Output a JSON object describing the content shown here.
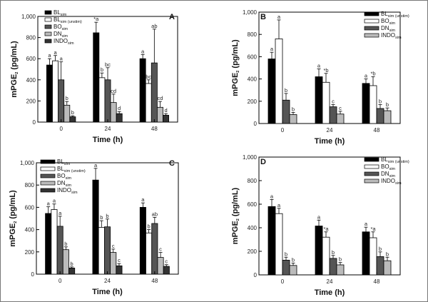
{
  "chart_data": [
    {
      "type": "bar",
      "panel": "A",
      "xlabel": "Time (h)",
      "ylabel": "mPGE",
      "ylabel_sub": "2",
      "ylabel_unit": " (pg/mL)",
      "ylim": [
        0,
        1000
      ],
      "yticks": [
        "0",
        "200",
        "400",
        "600",
        "800",
        "1,000"
      ],
      "categories": [
        "0",
        "24",
        "48"
      ],
      "series": [
        {
          "name": "BL",
          "sub": "sim",
          "color": "#000000",
          "values": [
            540,
            845,
            600
          ],
          "err": [
            60,
            100,
            40
          ],
          "labels": [
            "a",
            "*a",
            "a"
          ]
        },
        {
          "name": "BL",
          "sub": "sim (unstim)",
          "color": "#ffffff",
          "values": [
            580,
            420,
            365
          ],
          "err": [
            50,
            45,
            35
          ],
          "labels": [
            "a",
            "b",
            "bc"
          ]
        },
        {
          "name": "BO",
          "sub": "sim",
          "color": "#555555",
          "values": [
            400,
            400,
            560
          ],
          "err": [
            170,
            115,
            320
          ],
          "labels": [
            "a",
            "bc",
            "ab"
          ]
        },
        {
          "name": "DN",
          "sub": "sim",
          "color": "#bbbbbb",
          "values": [
            160,
            185,
            140
          ],
          "err": [
            35,
            80,
            55
          ],
          "labels": [
            "b",
            "cd",
            "cd"
          ]
        },
        {
          "name": "INDO",
          "sub": "sim",
          "color": "#333333",
          "values": [
            50,
            80,
            65
          ],
          "err": [
            10,
            20,
            15
          ],
          "labels": [
            "b",
            "d",
            "d"
          ]
        }
      ]
    },
    {
      "type": "bar",
      "panel": "B",
      "xlabel": "Time (h)",
      "ylabel": "mPGE",
      "ylabel_sub": "2",
      "ylabel_unit": " (pg/mL)",
      "ylim": [
        0,
        1000
      ],
      "yticks": [
        "0",
        "200",
        "400",
        "600",
        "800",
        "1,000"
      ],
      "categories": [
        "0",
        "24",
        "48"
      ],
      "series": [
        {
          "name": "BL",
          "sub": "sim (unstim)",
          "color": "#000000",
          "values": [
            580,
            420,
            360
          ],
          "err": [
            60,
            70,
            40
          ],
          "labels": [
            "a",
            "a",
            "a"
          ]
        },
        {
          "name": "BO",
          "sub": "sim",
          "color": "#ffffff",
          "values": [
            760,
            370,
            340
          ],
          "err": [
            170,
            80,
            80
          ],
          "labels": [
            "a",
            "*b",
            "*b"
          ]
        },
        {
          "name": "DN",
          "sub": "sim",
          "color": "#555555",
          "values": [
            210,
            150,
            135
          ],
          "err": [
            60,
            20,
            35
          ],
          "labels": [
            "b",
            "c",
            "b"
          ]
        },
        {
          "name": "INDO",
          "sub": "sim",
          "color": "#bbbbbb",
          "values": [
            80,
            85,
            115
          ],
          "err": [
            20,
            25,
            25
          ],
          "labels": [
            "b",
            "c",
            "b"
          ]
        }
      ]
    },
    {
      "type": "bar",
      "panel": "C",
      "xlabel": "Time (h)",
      "ylabel": "mPGE",
      "ylabel_sub": "2",
      "ylabel_unit": " (pg/mL)",
      "ylim": [
        0,
        1000
      ],
      "yticks": [
        "0",
        "200",
        "400",
        "600",
        "800",
        "1,000"
      ],
      "categories": [
        "0",
        "24",
        "48"
      ],
      "series": [
        {
          "name": "BL",
          "sub": "sim",
          "color": "#000000",
          "values": [
            545,
            845,
            600
          ],
          "err": [
            60,
            105,
            40
          ],
          "labels": [
            "a",
            "a",
            "a"
          ]
        },
        {
          "name": "BL",
          "sub": "sim (unstim)",
          "color": "#ffffff",
          "values": [
            580,
            420,
            370
          ],
          "err": [
            50,
            60,
            30
          ],
          "labels": [
            "a",
            "b",
            "b"
          ]
        },
        {
          "name": "BO",
          "sub": "sim",
          "color": "#555555",
          "values": [
            430,
            425,
            455
          ],
          "err": [
            90,
            70,
            55
          ],
          "labels": [
            "a",
            "b",
            "ab"
          ]
        },
        {
          "name": "DN",
          "sub": "sim",
          "color": "#bbbbbb",
          "values": [
            220,
            195,
            150
          ],
          "err": [
            25,
            30,
            45
          ],
          "labels": [
            "b",
            "c",
            "c"
          ]
        },
        {
          "name": "INDO",
          "sub": "sim",
          "color": "#333333",
          "values": [
            55,
            75,
            70
          ],
          "err": [
            10,
            20,
            15
          ],
          "labels": [
            "b",
            "c",
            "c"
          ]
        }
      ]
    },
    {
      "type": "bar",
      "panel": "D",
      "xlabel": "Time (h)",
      "ylabel": "mPGE",
      "ylabel_sub": "2",
      "ylabel_unit": " (pg/mL)",
      "ylim": [
        0,
        1000
      ],
      "yticks": [
        "0",
        "200",
        "400",
        "600",
        "800",
        "1,000"
      ],
      "categories": [
        "0",
        "24",
        "48"
      ],
      "series": [
        {
          "name": "BL",
          "sub": "sim (unstim)",
          "color": "#000000",
          "values": [
            580,
            415,
            365
          ],
          "err": [
            60,
            50,
            40
          ],
          "labels": [
            "a",
            "a",
            "a"
          ]
        },
        {
          "name": "BO",
          "sub": "sim",
          "color": "#ffffff",
          "values": [
            520,
            320,
            315
          ],
          "err": [
            45,
            45,
            50
          ],
          "labels": [
            "a",
            "*a",
            "*a"
          ]
        },
        {
          "name": "DN",
          "sub": "sim",
          "color": "#555555",
          "values": [
            125,
            140,
            155
          ],
          "err": [
            25,
            25,
            40
          ],
          "labels": [
            "b",
            "b",
            "b"
          ]
        },
        {
          "name": "INDO",
          "sub": "sim",
          "color": "#bbbbbb",
          "values": [
            80,
            85,
            120
          ],
          "err": [
            20,
            20,
            30
          ],
          "labels": [
            "b",
            "b",
            "b"
          ]
        }
      ]
    }
  ]
}
